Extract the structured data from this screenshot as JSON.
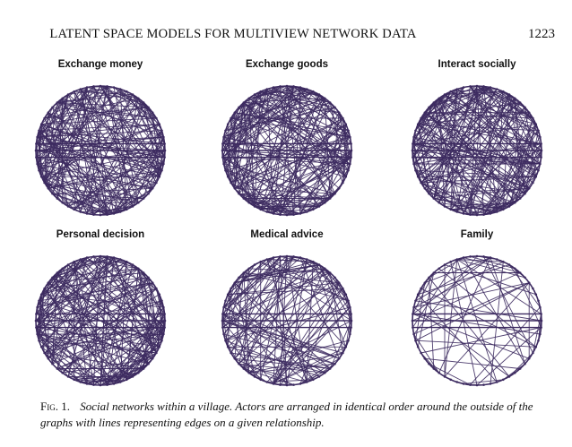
{
  "header": {
    "running_title": "LATENT SPACE MODELS FOR MULTIVIEW NETWORK DATA",
    "page_number": "1223"
  },
  "figure": {
    "line_color": "#3d2b61",
    "panels": [
      {
        "title": "Exchange money",
        "density": "high"
      },
      {
        "title": "Exchange goods",
        "density": "high"
      },
      {
        "title": "Interact socially",
        "density": "high"
      },
      {
        "title": "Personal decision",
        "density": "high"
      },
      {
        "title": "Medical advice",
        "density": "medium"
      },
      {
        "title": "Family",
        "density": "low"
      }
    ]
  },
  "caption": {
    "label": "Fig. 1.",
    "text": "Social networks within a village. Actors are arranged in identical order around the outside of the graphs with lines representing edges on a given relationship."
  }
}
